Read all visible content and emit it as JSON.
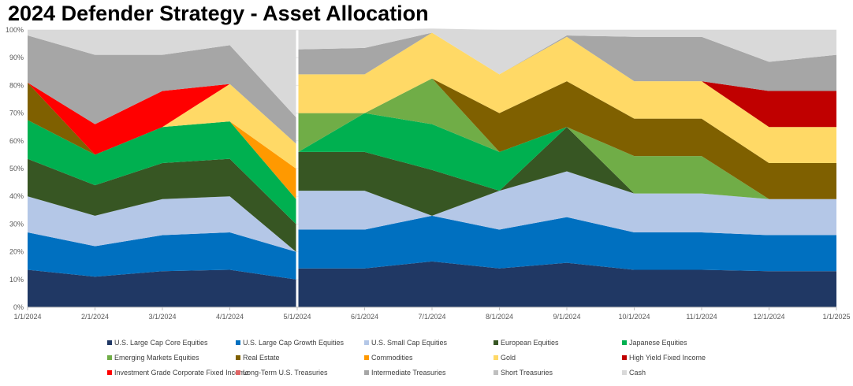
{
  "chart_data": {
    "type": "area",
    "stacked": true,
    "title": "2024 Defender Strategy - Asset Allocation",
    "xlabel": "",
    "ylabel": "",
    "ylim": [
      0,
      100
    ],
    "y_ticks": [
      "0%",
      "10%",
      "20%",
      "30%",
      "40%",
      "50%",
      "60%",
      "70%",
      "80%",
      "90%",
      "100%"
    ],
    "x_ticks": [
      "1/1/2024",
      "2/1/2024",
      "3/1/2024",
      "4/1/2024",
      "5/1/2024",
      "6/1/2024",
      "7/1/2024",
      "8/1/2024",
      "9/1/2024",
      "10/1/2024",
      "11/1/2024",
      "12/1/2024",
      "1/1/2025"
    ],
    "legend_position": "bottom",
    "gap_after_index": 4,
    "segments": [
      {
        "x": [
          "1/1/2024",
          "2/1/2024",
          "3/1/2024",
          "4/1/2024",
          "5/1/2024"
        ],
        "series": [
          {
            "name": "U.S. Large Cap Core Equities",
            "values": [
              13.5,
              11,
              13,
              13.5,
              10
            ]
          },
          {
            "name": "U.S. Large Cap Growth Equities",
            "values": [
              13.5,
              11,
              13,
              13.5,
              10
            ]
          },
          {
            "name": "U.S. Small Cap Equities",
            "values": [
              13,
              11,
              13,
              13,
              0
            ]
          },
          {
            "name": "European Equities",
            "values": [
              13.5,
              11,
              13,
              13.5,
              10
            ]
          },
          {
            "name": "Japanese Equities",
            "values": [
              14,
              11,
              13,
              13.5,
              9
            ]
          },
          {
            "name": "Emerging Markets Equities",
            "values": [
              0,
              0,
              0,
              0,
              0
            ]
          },
          {
            "name": "Real Estate",
            "values": [
              13.5,
              0,
              0,
              0,
              0
            ]
          },
          {
            "name": "Commodities",
            "values": [
              0,
              0,
              0,
              0,
              11
            ]
          },
          {
            "name": "Gold",
            "values": [
              0,
              0,
              0,
              13.5,
              9
            ]
          },
          {
            "name": "High Yield Fixed Income",
            "values": [
              0,
              0,
              0,
              0,
              0
            ]
          },
          {
            "name": "Investment Grade Corporate Fixed Income",
            "values": [
              0,
              11,
              13,
              0,
              0
            ]
          },
          {
            "name": "Long-Term U.S. Treasuries",
            "values": [
              0,
              0,
              0,
              0,
              0
            ]
          },
          {
            "name": "Intermediate Treasuries",
            "values": [
              17,
              25,
              13,
              14,
              9.5
            ]
          },
          {
            "name": "Short Treasuries",
            "values": [
              0,
              0,
              0,
              0,
              0
            ]
          },
          {
            "name": "Cash",
            "values": [
              2,
              9,
              9,
              5.5,
              31.5
            ]
          }
        ]
      },
      {
        "x": [
          "5/1/2024",
          "6/1/2024",
          "7/1/2024",
          "8/1/2024",
          "9/1/2024",
          "10/1/2024",
          "11/1/2024",
          "12/1/2024",
          "1/1/2025"
        ],
        "series": [
          {
            "name": "U.S. Large Cap Core Equities",
            "values": [
              14,
              14,
              16.5,
              14,
              16,
              13.5,
              13.5,
              13,
              13
            ]
          },
          {
            "name": "U.S. Large Cap Growth Equities",
            "values": [
              14,
              14,
              16.5,
              14,
              16.5,
              13.5,
              13.5,
              13,
              13
            ]
          },
          {
            "name": "U.S. Small Cap Equities",
            "values": [
              14,
              14,
              0,
              14,
              16.5,
              14,
              14,
              13,
              13
            ]
          },
          {
            "name": "European Equities",
            "values": [
              14,
              14,
              16.5,
              0,
              16,
              0,
              0,
              0,
              0
            ]
          },
          {
            "name": "Japanese Equities",
            "values": [
              0,
              14,
              16.5,
              14,
              0,
              0,
              0,
              0,
              0
            ]
          },
          {
            "name": "Emerging Markets Equities",
            "values": [
              14,
              0,
              16.5,
              0,
              0,
              13.5,
              13.5,
              0,
              0
            ]
          },
          {
            "name": "Real Estate",
            "values": [
              0,
              0,
              0,
              14,
              16.5,
              13.5,
              13.5,
              13,
              13
            ]
          },
          {
            "name": "Commodities",
            "values": [
              0,
              0,
              0,
              0,
              0,
              0,
              0,
              0,
              0
            ]
          },
          {
            "name": "Gold",
            "values": [
              14,
              14,
              16.5,
              14,
              16,
              13.5,
              13.5,
              13,
              13
            ]
          },
          {
            "name": "High Yield Fixed Income",
            "values": [
              0,
              0,
              0,
              0,
              0,
              0,
              0,
              13,
              13
            ]
          },
          {
            "name": "Investment Grade Corporate Fixed Income",
            "values": [
              0,
              0,
              0,
              0,
              0,
              0,
              0,
              0,
              0
            ]
          },
          {
            "name": "Long-Term U.S. Treasuries",
            "values": [
              0,
              0,
              0,
              0,
              0,
              0,
              0,
              0,
              0
            ]
          },
          {
            "name": "Intermediate Treasuries",
            "values": [
              9,
              9.5,
              0,
              0,
              0.5,
              16,
              16,
              10.5,
              13
            ]
          },
          {
            "name": "Short Treasuries",
            "values": [
              0,
              0,
              0,
              0,
              0,
              0,
              0,
              0,
              0
            ]
          },
          {
            "name": "Cash",
            "values": [
              7,
              6.5,
              1.5,
              16,
              2,
              2.5,
              2.5,
              11.5,
              9
            ]
          }
        ]
      }
    ],
    "legend": [
      {
        "name": "U.S. Large Cap Core Equities",
        "color": "#203864"
      },
      {
        "name": "U.S. Large Cap Growth Equities",
        "color": "#0070c0"
      },
      {
        "name": "U.S. Small Cap Equities",
        "color": "#b4c7e7"
      },
      {
        "name": "European Equities",
        "color": "#375623"
      },
      {
        "name": "Japanese Equities",
        "color": "#00b050"
      },
      {
        "name": "Emerging Markets Equities",
        "color": "#70ad47"
      },
      {
        "name": "Real Estate",
        "color": "#7f6000"
      },
      {
        "name": "Commodities",
        "color": "#ff9900"
      },
      {
        "name": "Gold",
        "color": "#ffd966"
      },
      {
        "name": "High Yield Fixed Income",
        "color": "#c00000"
      },
      {
        "name": "Investment Grade Corporate Fixed Income",
        "color": "#ff0000"
      },
      {
        "name": "Long-Term U.S. Treasuries",
        "color": "#e06666"
      },
      {
        "name": "Intermediate Treasuries",
        "color": "#a6a6a6"
      },
      {
        "name": "Short Treasuries",
        "color": "#bfbfbf"
      },
      {
        "name": "Cash",
        "color": "#d9d9d9"
      }
    ]
  }
}
